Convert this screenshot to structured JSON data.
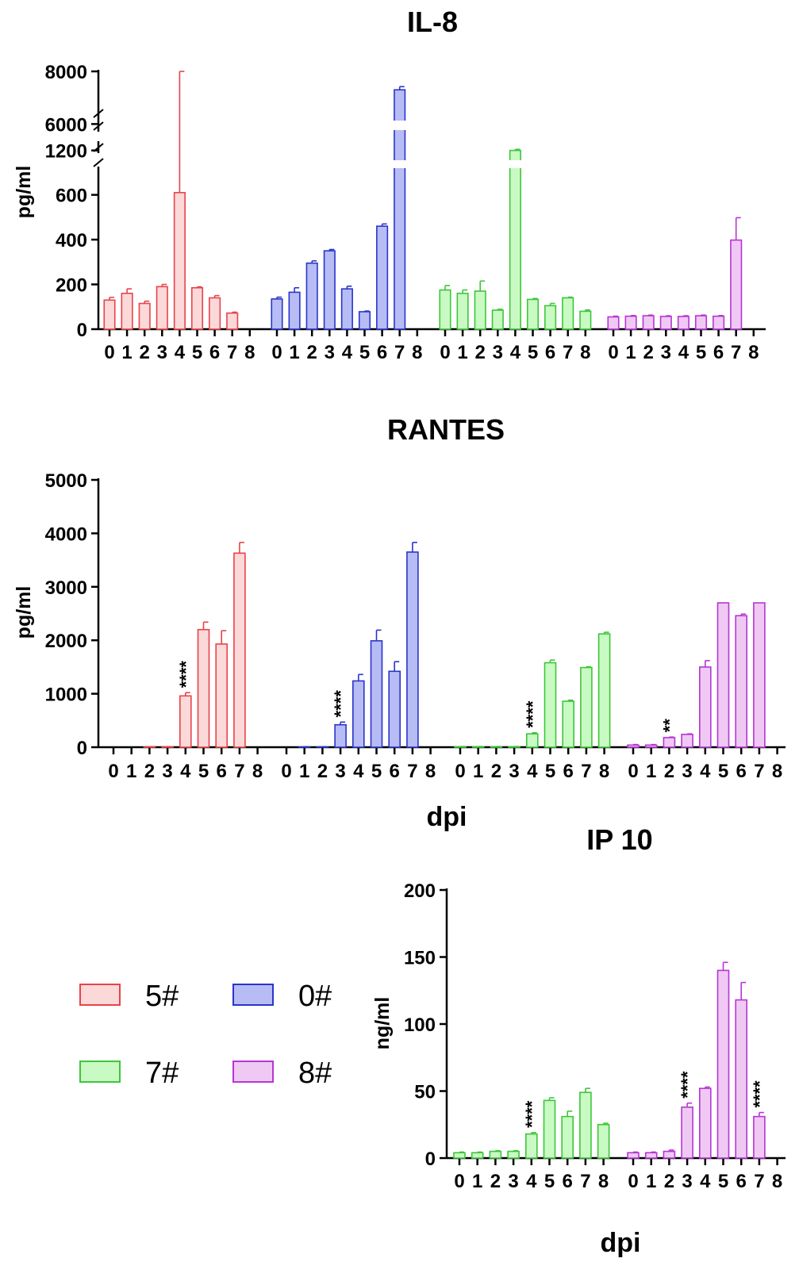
{
  "colors": {
    "5#": {
      "fill": "#fbd9d9",
      "stroke": "#e8434a"
    },
    "0#": {
      "fill": "#b7bcf5",
      "stroke": "#2a35c9"
    },
    "7#": {
      "fill": "#c9fac4",
      "stroke": "#3ec63a"
    },
    "8#": {
      "fill": "#f0c8f4",
      "stroke": "#b536d4"
    }
  },
  "legend": [
    {
      "label": "5#",
      "series": "5#"
    },
    {
      "label": "0#",
      "series": "0#"
    },
    {
      "label": "7#",
      "series": "7#"
    },
    {
      "label": "8#",
      "series": "8#"
    }
  ],
  "chart_data": [
    {
      "type": "bar",
      "title": "IL-8",
      "ylabel": "pg/ml",
      "xlabel": "",
      "y_axis_breaks": [
        [
          620,
          1100
        ],
        [
          1250,
          5800
        ]
      ],
      "yticks": [
        0,
        200,
        400,
        600,
        1200,
        6000,
        8000
      ],
      "categories": [
        "0",
        "1",
        "2",
        "3",
        "4",
        "5",
        "6",
        "7",
        "8"
      ],
      "series": [
        {
          "name": "5#",
          "values": [
            130,
            160,
            115,
            190,
            610,
            185,
            140,
            72,
            null
          ],
          "errors": [
            12,
            20,
            10,
            10,
            15,
            4,
            10,
            4,
            null
          ],
          "sig": []
        },
        {
          "name": "0#",
          "values": [
            135,
            165,
            295,
            350,
            180,
            78,
            460,
            7300,
            null
          ],
          "errors": [
            8,
            20,
            10,
            6,
            12,
            3,
            10,
            120,
            null
          ],
          "sig": []
        },
        {
          "name": "7#",
          "values": [
            175,
            160,
            170,
            85,
            1200,
            133,
            105,
            140,
            80
          ],
          "errors": [
            20,
            15,
            45,
            4,
            6,
            4,
            10,
            3,
            6
          ],
          "sig": []
        },
        {
          "name": "8#",
          "values": [
            55,
            58,
            60,
            57,
            57,
            60,
            58,
            398,
            null
          ],
          "errors": [
            3,
            3,
            3,
            3,
            3,
            3,
            3,
            100,
            null
          ],
          "sig": []
        }
      ]
    },
    {
      "type": "bar",
      "title": "RANTES",
      "ylabel": "pg/ml",
      "xlabel": "dpi",
      "ylim": [
        0,
        5000
      ],
      "yticks": [
        0,
        1000,
        2000,
        3000,
        4000,
        5000
      ],
      "categories": [
        "0",
        "1",
        "2",
        "3",
        "4",
        "5",
        "6",
        "7",
        "8"
      ],
      "series": [
        {
          "name": "5#",
          "values": [
            0,
            0,
            5,
            5,
            960,
            2200,
            1930,
            3630,
            null
          ],
          "errors": [
            0,
            0,
            3,
            3,
            60,
            140,
            250,
            200,
            null
          ],
          "sig": [
            {
              "index": 4,
              "text": "****"
            }
          ]
        },
        {
          "name": "0#",
          "values": [
            0,
            5,
            5,
            420,
            1240,
            1990,
            1420,
            3650,
            null
          ],
          "errors": [
            0,
            3,
            3,
            50,
            120,
            200,
            180,
            180,
            null
          ],
          "sig": [
            {
              "index": 3,
              "text": "****"
            }
          ]
        },
        {
          "name": "7#",
          "values": [
            10,
            10,
            10,
            10,
            250,
            1580,
            860,
            1490,
            2120
          ],
          "errors": [
            3,
            3,
            3,
            3,
            20,
            50,
            20,
            15,
            30
          ],
          "sig": [
            {
              "index": 4,
              "text": "****"
            }
          ]
        },
        {
          "name": "8#",
          "values": [
            40,
            40,
            180,
            240,
            1500,
            2700,
            2460,
            2700,
            null
          ],
          "errors": [
            10,
            10,
            10,
            10,
            120,
            0,
            30,
            0,
            null
          ],
          "sig": [
            {
              "index": 2,
              "text": "**"
            }
          ]
        }
      ]
    },
    {
      "type": "bar",
      "title": "IP 10",
      "ylabel": "ng/ml",
      "xlabel": "dpi",
      "ylim": [
        0,
        200
      ],
      "yticks": [
        0,
        50,
        100,
        150,
        200
      ],
      "categories": [
        "0",
        "1",
        "2",
        "3",
        "4",
        "5",
        "6",
        "7",
        "8"
      ],
      "series": [
        {
          "name": "7#",
          "values": [
            4,
            4,
            5,
            5,
            18,
            43,
            31,
            49,
            25
          ],
          "errors": [
            0.5,
            0.5,
            0.5,
            0.5,
            1,
            2,
            4,
            3,
            1
          ],
          "sig": [
            {
              "index": 4,
              "text": "****"
            }
          ]
        },
        {
          "name": "8#",
          "values": [
            4,
            4,
            5,
            38,
            52,
            140,
            118,
            31,
            null
          ],
          "errors": [
            0.5,
            0.5,
            1,
            3,
            1,
            6,
            13,
            3,
            null
          ],
          "sig": [
            {
              "index": 3,
              "text": "****"
            },
            {
              "index": 7,
              "text": "****"
            }
          ]
        }
      ]
    }
  ]
}
